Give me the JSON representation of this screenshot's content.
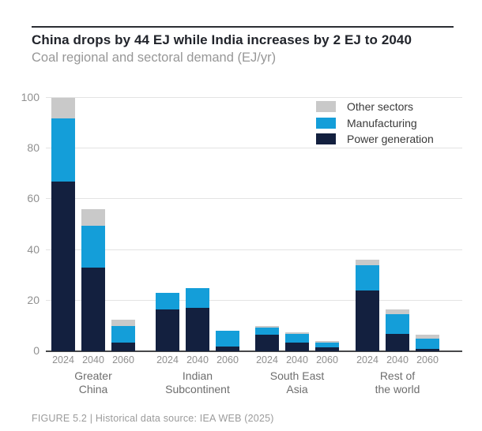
{
  "header": {
    "title": "China drops by 44 EJ while India increases by 2 EJ to 2040",
    "subtitle": "Coal regional and sectoral demand (EJ/yr)"
  },
  "legend": {
    "items": [
      {
        "key": "other",
        "label": "Other sectors"
      },
      {
        "key": "manufacturing",
        "label": "Manufacturing"
      },
      {
        "key": "power",
        "label": "Power generation"
      }
    ]
  },
  "chart_data": {
    "type": "bar",
    "stacked": true,
    "title": "China drops by 44 EJ while India increases by 2 EJ to 2040",
    "subtitle": "Coal regional and sectoral demand (EJ/yr)",
    "unit": "EJ/yr",
    "ylim": [
      0,
      100
    ],
    "yticks": [
      0,
      20,
      40,
      60,
      80,
      100
    ],
    "grid": true,
    "legend_position": "top-right",
    "series_order": [
      "power",
      "manufacturing",
      "other"
    ],
    "series_labels": {
      "power": "Power generation",
      "manufacturing": "Manufacturing",
      "other": "Other sectors"
    },
    "colors": {
      "power": "#13203f",
      "manufacturing": "#149ed9",
      "other": "#c9c9c9"
    },
    "groups": [
      {
        "label": "Greater China",
        "label_lines": [
          "Greater",
          "China"
        ],
        "years": [
          "2024",
          "2040",
          "2060"
        ],
        "series": {
          "power": [
            67,
            33,
            3.5
          ],
          "manufacturing": [
            25,
            16.5,
            6.5
          ],
          "other": [
            8,
            6.5,
            2.5
          ]
        }
      },
      {
        "label": "Indian Subcontinent",
        "label_lines": [
          "Indian",
          "Subcontinent"
        ],
        "years": [
          "2024",
          "2040",
          "2060"
        ],
        "series": {
          "power": [
            16.5,
            17,
            2
          ],
          "manufacturing": [
            6.5,
            8,
            6
          ],
          "other": [
            0,
            0,
            0
          ]
        }
      },
      {
        "label": "South East Asia",
        "label_lines": [
          "South East",
          "Asia"
        ],
        "years": [
          "2024",
          "2040",
          "2060"
        ],
        "series": {
          "power": [
            6.5,
            3.5,
            1.5
          ],
          "manufacturing": [
            3,
            3.5,
            2
          ],
          "other": [
            0.5,
            0.5,
            0.5
          ]
        }
      },
      {
        "label": "Rest of the world",
        "label_lines": [
          "Rest of",
          "the world"
        ],
        "years": [
          "2024",
          "2040",
          "2060"
        ],
        "series": {
          "power": [
            24,
            7,
            1
          ],
          "manufacturing": [
            10,
            7.5,
            4
          ],
          "other": [
            2,
            2,
            1.5
          ]
        }
      }
    ]
  },
  "footer": {
    "caption": "FIGURE 5.2 | Historical data source: IEA WEB (2025)"
  }
}
